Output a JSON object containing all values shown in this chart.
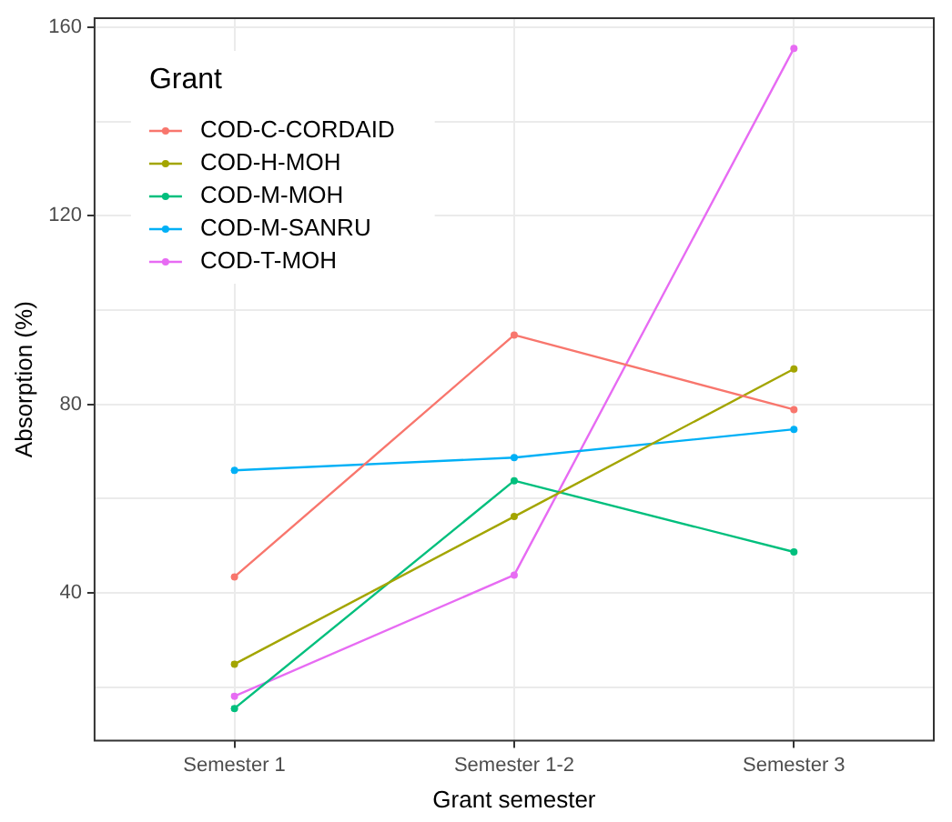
{
  "chart_data": {
    "type": "line",
    "xlabel": "Grant semester",
    "ylabel": "Absorption (%)",
    "legend_title": "Grant",
    "categories": [
      "Semester 1",
      "Semester 1-2",
      "Semester 3"
    ],
    "series": [
      {
        "name": "COD-C-CORDAID",
        "color": "#f8766d",
        "values": [
          43.4,
          94.7,
          78.9
        ]
      },
      {
        "name": "COD-H-MOH",
        "color": "#a3a500",
        "values": [
          24.9,
          56.2,
          87.5
        ]
      },
      {
        "name": "COD-M-MOH",
        "color": "#00bf7d",
        "values": [
          15.5,
          63.8,
          48.7
        ]
      },
      {
        "name": "COD-M-SANRU",
        "color": "#00b0f6",
        "values": [
          66.0,
          68.7,
          74.7
        ]
      },
      {
        "name": "COD-T-MOH",
        "color": "#e76bf3",
        "values": [
          18.1,
          43.8,
          155.5
        ]
      }
    ],
    "ylim": [
      8.7,
      161.9
    ],
    "yticks": [
      {
        "value": 20,
        "label": null
      },
      40,
      {
        "value": 60,
        "label": null
      },
      80,
      {
        "value": 100,
        "label": null
      },
      120,
      {
        "value": 140,
        "label": null
      },
      160
    ],
    "grid": true,
    "legend": "top left",
    "marker": "circle",
    "line_style": "solid"
  }
}
